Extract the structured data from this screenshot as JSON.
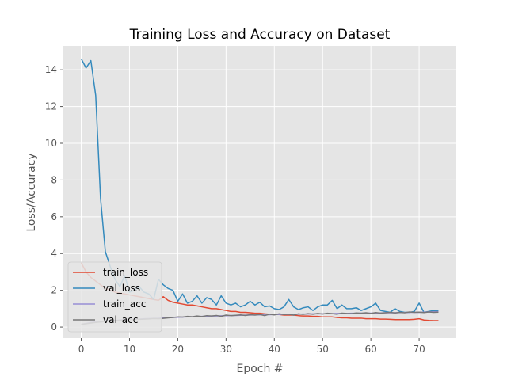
{
  "chart_data": {
    "type": "line",
    "title": "Training Loss and Accuracy on Dataset",
    "xlabel": "Epoch #",
    "ylabel": "Loss/Accuracy",
    "xlim": [
      -3.7,
      77.7
    ],
    "ylim": [
      -0.6,
      15.3
    ],
    "xticks": [
      "0",
      "10",
      "20",
      "30",
      "40",
      "50",
      "60",
      "70"
    ],
    "yticks": [
      "0",
      "2",
      "4",
      "6",
      "8",
      "10",
      "12",
      "14"
    ],
    "grid": true,
    "legend_position": "lower-left",
    "x": [
      0,
      1,
      2,
      3,
      4,
      5,
      6,
      7,
      8,
      9,
      10,
      11,
      12,
      13,
      14,
      15,
      16,
      17,
      18,
      19,
      20,
      21,
      22,
      23,
      24,
      25,
      26,
      27,
      28,
      29,
      30,
      31,
      32,
      33,
      34,
      35,
      36,
      37,
      38,
      39,
      40,
      41,
      42,
      43,
      44,
      45,
      46,
      47,
      48,
      49,
      50,
      51,
      52,
      53,
      54,
      55,
      56,
      57,
      58,
      59,
      60,
      61,
      62,
      63,
      64,
      65,
      66,
      67,
      68,
      69,
      70,
      71,
      72,
      73,
      74
    ],
    "series": [
      {
        "name": "train_loss",
        "color": "#E24A33",
        "values": [
          3.5,
          3.0,
          2.7,
          2.5,
          2.3,
          2.1,
          2.0,
          1.9,
          1.85,
          1.8,
          1.75,
          1.7,
          1.65,
          1.6,
          1.55,
          1.5,
          1.45,
          1.65,
          1.45,
          1.35,
          1.3,
          1.25,
          1.2,
          1.2,
          1.15,
          1.1,
          1.05,
          1.0,
          1.0,
          0.95,
          0.9,
          0.85,
          0.85,
          0.8,
          0.8,
          0.78,
          0.75,
          0.75,
          0.72,
          0.7,
          0.7,
          0.68,
          0.65,
          0.65,
          0.65,
          0.62,
          0.6,
          0.6,
          0.58,
          0.58,
          0.55,
          0.55,
          0.55,
          0.52,
          0.5,
          0.5,
          0.48,
          0.48,
          0.48,
          0.45,
          0.45,
          0.45,
          0.43,
          0.43,
          0.42,
          0.4,
          0.4,
          0.4,
          0.4,
          0.42,
          0.45,
          0.38,
          0.36,
          0.35,
          0.35
        ]
      },
      {
        "name": "val_loss",
        "color": "#348ABD",
        "values": [
          14.6,
          14.1,
          14.5,
          12.6,
          7.0,
          4.1,
          3.3,
          2.6,
          2.2,
          2.8,
          1.9,
          2.0,
          2.2,
          1.9,
          1.8,
          1.5,
          2.6,
          2.3,
          2.1,
          2.0,
          1.4,
          1.8,
          1.3,
          1.4,
          1.7,
          1.3,
          1.6,
          1.5,
          1.2,
          1.7,
          1.3,
          1.2,
          1.3,
          1.1,
          1.2,
          1.4,
          1.2,
          1.35,
          1.1,
          1.15,
          1.0,
          0.95,
          1.1,
          1.5,
          1.1,
          0.95,
          1.05,
          1.1,
          0.9,
          1.1,
          1.2,
          1.2,
          1.45,
          1.0,
          1.2,
          1.0,
          1.0,
          1.05,
          0.9,
          1.0,
          1.1,
          1.3,
          0.9,
          0.85,
          0.8,
          1.0,
          0.85,
          0.8,
          0.8,
          0.85,
          1.3,
          0.8,
          0.85,
          0.9,
          0.9
        ]
      },
      {
        "name": "train_acc",
        "color": "#988ED5",
        "values": [
          0.15,
          0.2,
          0.25,
          0.28,
          0.3,
          0.32,
          0.34,
          0.36,
          0.38,
          0.4,
          0.41,
          0.42,
          0.43,
          0.45,
          0.46,
          0.47,
          0.48,
          0.5,
          0.51,
          0.52,
          0.53,
          0.54,
          0.55,
          0.56,
          0.57,
          0.58,
          0.59,
          0.6,
          0.6,
          0.61,
          0.62,
          0.63,
          0.63,
          0.64,
          0.65,
          0.65,
          0.66,
          0.66,
          0.67,
          0.67,
          0.68,
          0.68,
          0.69,
          0.69,
          0.7,
          0.7,
          0.71,
          0.71,
          0.72,
          0.72,
          0.72,
          0.73,
          0.73,
          0.74,
          0.74,
          0.74,
          0.75,
          0.75,
          0.76,
          0.76,
          0.76,
          0.77,
          0.77,
          0.78,
          0.78,
          0.78,
          0.79,
          0.79,
          0.8,
          0.8,
          0.8,
          0.81,
          0.82,
          0.83,
          0.84
        ]
      },
      {
        "name": "val_acc",
        "color": "#777777",
        "values": [
          0.15,
          0.18,
          0.22,
          0.25,
          0.28,
          0.3,
          0.32,
          0.35,
          0.37,
          0.38,
          0.4,
          0.41,
          0.42,
          0.43,
          0.44,
          0.46,
          0.45,
          0.47,
          0.5,
          0.52,
          0.55,
          0.54,
          0.58,
          0.56,
          0.6,
          0.57,
          0.62,
          0.6,
          0.63,
          0.58,
          0.65,
          0.62,
          0.64,
          0.66,
          0.63,
          0.67,
          0.65,
          0.68,
          0.62,
          0.7,
          0.66,
          0.72,
          0.68,
          0.7,
          0.65,
          0.72,
          0.69,
          0.73,
          0.7,
          0.74,
          0.71,
          0.75,
          0.73,
          0.7,
          0.76,
          0.74,
          0.73,
          0.77,
          0.75,
          0.78,
          0.74,
          0.79,
          0.76,
          0.78,
          0.8,
          0.77,
          0.8,
          0.78,
          0.82,
          0.8,
          0.81,
          0.79,
          0.82,
          0.8,
          0.81
        ]
      }
    ]
  }
}
